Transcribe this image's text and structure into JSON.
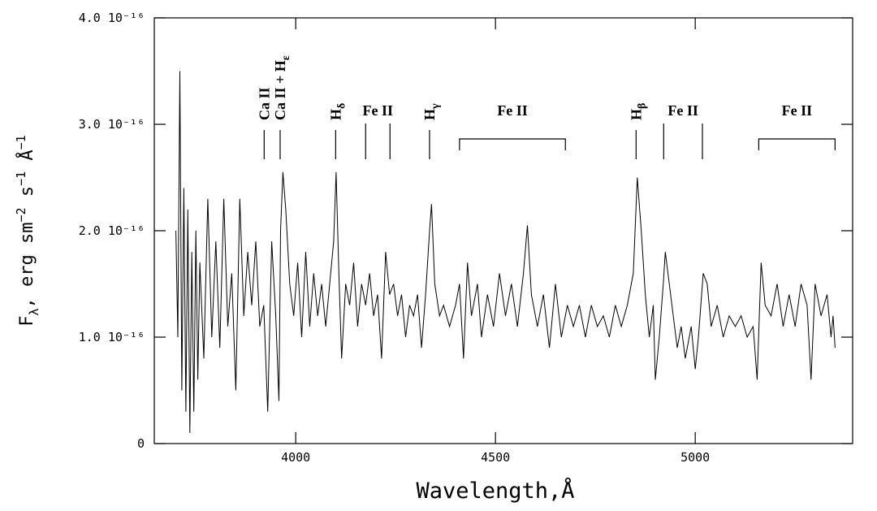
{
  "chart_data": {
    "type": "line",
    "xlabel": "Wavelength,Å",
    "ylabel": [
      {
        "text": "F"
      },
      {
        "text": "λ",
        "shift": "sub"
      },
      {
        "text": ", erg sm"
      },
      {
        "text": "−2",
        "shift": "sup"
      },
      {
        "text": " s"
      },
      {
        "text": "−1",
        "shift": "sup"
      },
      {
        "text": " Å"
      },
      {
        "text": "−1",
        "shift": "sup"
      }
    ],
    "color": "#000000",
    "xlim": [
      3646,
      5394
    ],
    "xticks": [
      4000,
      4500,
      5000
    ],
    "ylim": [
      0,
      4e-16
    ],
    "yticks": [
      0,
      {
        "value": 1e-16,
        "label": "1.0 10⁻¹⁶"
      },
      {
        "value": 2e-16,
        "label": "2.0 10⁻¹⁶"
      },
      {
        "value": 3e-16,
        "label": "3.0 10⁻¹⁶"
      },
      {
        "value": 4e-16,
        "label": "4.0 10⁻¹⁶"
      }
    ],
    "annotations": [
      {
        "text": "Ca II",
        "x": 3921
      },
      {
        "text": "Ca II + H",
        "sub": "ε",
        "x": 3961
      },
      {
        "text": "H",
        "sub": "δ",
        "x": 4100
      },
      {
        "text": "Fe II",
        "lines": [
          4175,
          4236
        ]
      },
      {
        "text": "H",
        "sub": "γ",
        "x": 4335
      },
      {
        "text": "Fe II",
        "range": [
          4410,
          4675
        ]
      },
      {
        "text": "H",
        "sub": "β",
        "x": 4852
      },
      {
        "text": "Fe II",
        "lines": [
          4921,
          5018
        ]
      },
      {
        "text": "Fe II",
        "range": [
          5159,
          5350
        ]
      }
    ],
    "x": [
      3700,
      3705,
      3710,
      3715,
      3720,
      3725,
      3730,
      3735,
      3740,
      3745,
      3750,
      3755,
      3760,
      3770,
      3780,
      3790,
      3800,
      3810,
      3820,
      3830,
      3840,
      3850,
      3860,
      3870,
      3880,
      3890,
      3900,
      3910,
      3920,
      3930,
      3940,
      3950,
      3958,
      3962,
      3968,
      3975,
      3985,
      3995,
      4005,
      4015,
      4025,
      4035,
      4045,
      4055,
      4065,
      4075,
      4085,
      4095,
      4101,
      4108,
      4115,
      4125,
      4135,
      4145,
      4155,
      4165,
      4175,
      4185,
      4195,
      4205,
      4215,
      4225,
      4235,
      4245,
      4255,
      4265,
      4275,
      4285,
      4295,
      4305,
      4315,
      4325,
      4335,
      4340,
      4348,
      4360,
      4370,
      4385,
      4400,
      4410,
      4420,
      4430,
      4440,
      4455,
      4465,
      4480,
      4495,
      4510,
      4525,
      4540,
      4555,
      4570,
      4580,
      4590,
      4605,
      4620,
      4635,
      4650,
      4665,
      4680,
      4695,
      4710,
      4725,
      4740,
      4755,
      4770,
      4785,
      4800,
      4815,
      4830,
      4845,
      4855,
      4865,
      4875,
      4885,
      4895,
      4900,
      4910,
      4920,
      4925,
      4935,
      4945,
      4955,
      4965,
      4975,
      4990,
      5000,
      5008,
      5020,
      5030,
      5040,
      5055,
      5070,
      5085,
      5100,
      5115,
      5130,
      5145,
      5155,
      5165,
      5175,
      5190,
      5205,
      5220,
      5235,
      5250,
      5265,
      5280,
      5290,
      5300,
      5315,
      5330,
      5340,
      5345,
      5350
    ],
    "values": [
      2e-16,
      1e-16,
      3.5e-16,
      5e-17,
      2.4e-16,
      3e-17,
      2.2e-16,
      1e-17,
      1.8e-16,
      3e-17,
      2e-16,
      6e-17,
      1.7e-16,
      8e-17,
      2.3e-16,
      1e-16,
      1.9e-16,
      9e-17,
      2.3e-16,
      1.1e-16,
      1.6e-16,
      5e-17,
      2.3e-16,
      1.2e-16,
      1.8e-16,
      1.3e-16,
      1.9e-16,
      1.1e-16,
      1.3e-16,
      3e-17,
      1.9e-16,
      1.2e-16,
      4e-17,
      2e-16,
      2.55e-16,
      2.2e-16,
      1.5e-16,
      1.2e-16,
      1.7e-16,
      1e-16,
      1.8e-16,
      1.1e-16,
      1.6e-16,
      1.2e-16,
      1.5e-16,
      1.1e-16,
      1.5e-16,
      1.9e-16,
      2.55e-16,
      1.6e-16,
      8e-17,
      1.5e-16,
      1.3e-16,
      1.7e-16,
      1.1e-16,
      1.5e-16,
      1.3e-16,
      1.6e-16,
      1.2e-16,
      1.4e-16,
      8e-17,
      1.8e-16,
      1.4e-16,
      1.5e-16,
      1.2e-16,
      1.4e-16,
      1e-16,
      1.3e-16,
      1.2e-16,
      1.4e-16,
      9e-17,
      1.4e-16,
      2e-16,
      2.25e-16,
      1.5e-16,
      1.2e-16,
      1.3e-16,
      1.1e-16,
      1.3e-16,
      1.5e-16,
      8e-17,
      1.7e-16,
      1.2e-16,
      1.5e-16,
      1e-16,
      1.4e-16,
      1.1e-16,
      1.6e-16,
      1.2e-16,
      1.5e-16,
      1.1e-16,
      1.6e-16,
      2.05e-16,
      1.4e-16,
      1.1e-16,
      1.4e-16,
      9e-17,
      1.5e-16,
      1e-16,
      1.3e-16,
      1.1e-16,
      1.3e-16,
      1e-16,
      1.3e-16,
      1.1e-16,
      1.2e-16,
      1e-16,
      1.3e-16,
      1.1e-16,
      1.3e-16,
      1.6e-16,
      2.5e-16,
      2e-16,
      1.4e-16,
      1e-16,
      1.3e-16,
      6e-17,
      1e-16,
      1.5e-16,
      1.8e-16,
      1.5e-16,
      1.2e-16,
      9e-17,
      1.1e-16,
      8e-17,
      1.1e-16,
      7e-17,
      1e-16,
      1.6e-16,
      1.5e-16,
      1.1e-16,
      1.3e-16,
      1e-16,
      1.2e-16,
      1.1e-16,
      1.2e-16,
      1e-16,
      1.1e-16,
      6e-17,
      1.7e-16,
      1.3e-16,
      1.2e-16,
      1.5e-16,
      1.1e-16,
      1.4e-16,
      1.1e-16,
      1.5e-16,
      1.3e-16,
      6e-17,
      1.5e-16,
      1.2e-16,
      1.4e-16,
      1e-16,
      1.2e-16,
      9e-17
    ]
  }
}
